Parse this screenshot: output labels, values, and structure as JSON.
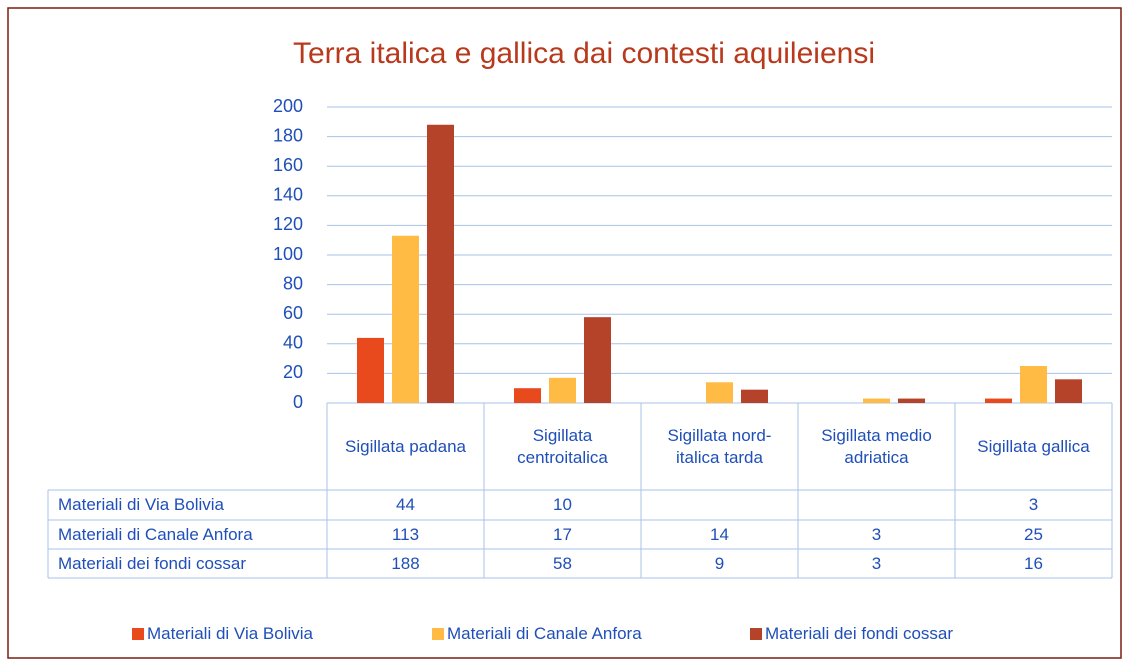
{
  "chart_data": {
    "type": "bar",
    "title": "Terra italica e gallica dai contesti aquileiensi",
    "categories": [
      "Sigillata padana",
      "Sigillata centroitalica",
      "Sigillata nord-italica tarda",
      "Sigillata medio adriatica",
      "Sigillata gallica"
    ],
    "series": [
      {
        "name": "Materiali di Via Bolivia",
        "color": "#e8491d",
        "values": [
          44,
          10,
          null,
          null,
          3
        ]
      },
      {
        "name": "Materiali di Canale Anfora",
        "color": "#ffbb44",
        "values": [
          113,
          17,
          14,
          3,
          25
        ]
      },
      {
        "name": "Materiali dei fondi cossar",
        "color": "#b5432a",
        "values": [
          188,
          58,
          9,
          3,
          16
        ]
      }
    ],
    "ylim": [
      0,
      200
    ],
    "yticks": [
      0,
      20,
      40,
      60,
      80,
      100,
      120,
      140,
      160,
      180,
      200
    ],
    "grid": true,
    "legend": "bottom"
  }
}
